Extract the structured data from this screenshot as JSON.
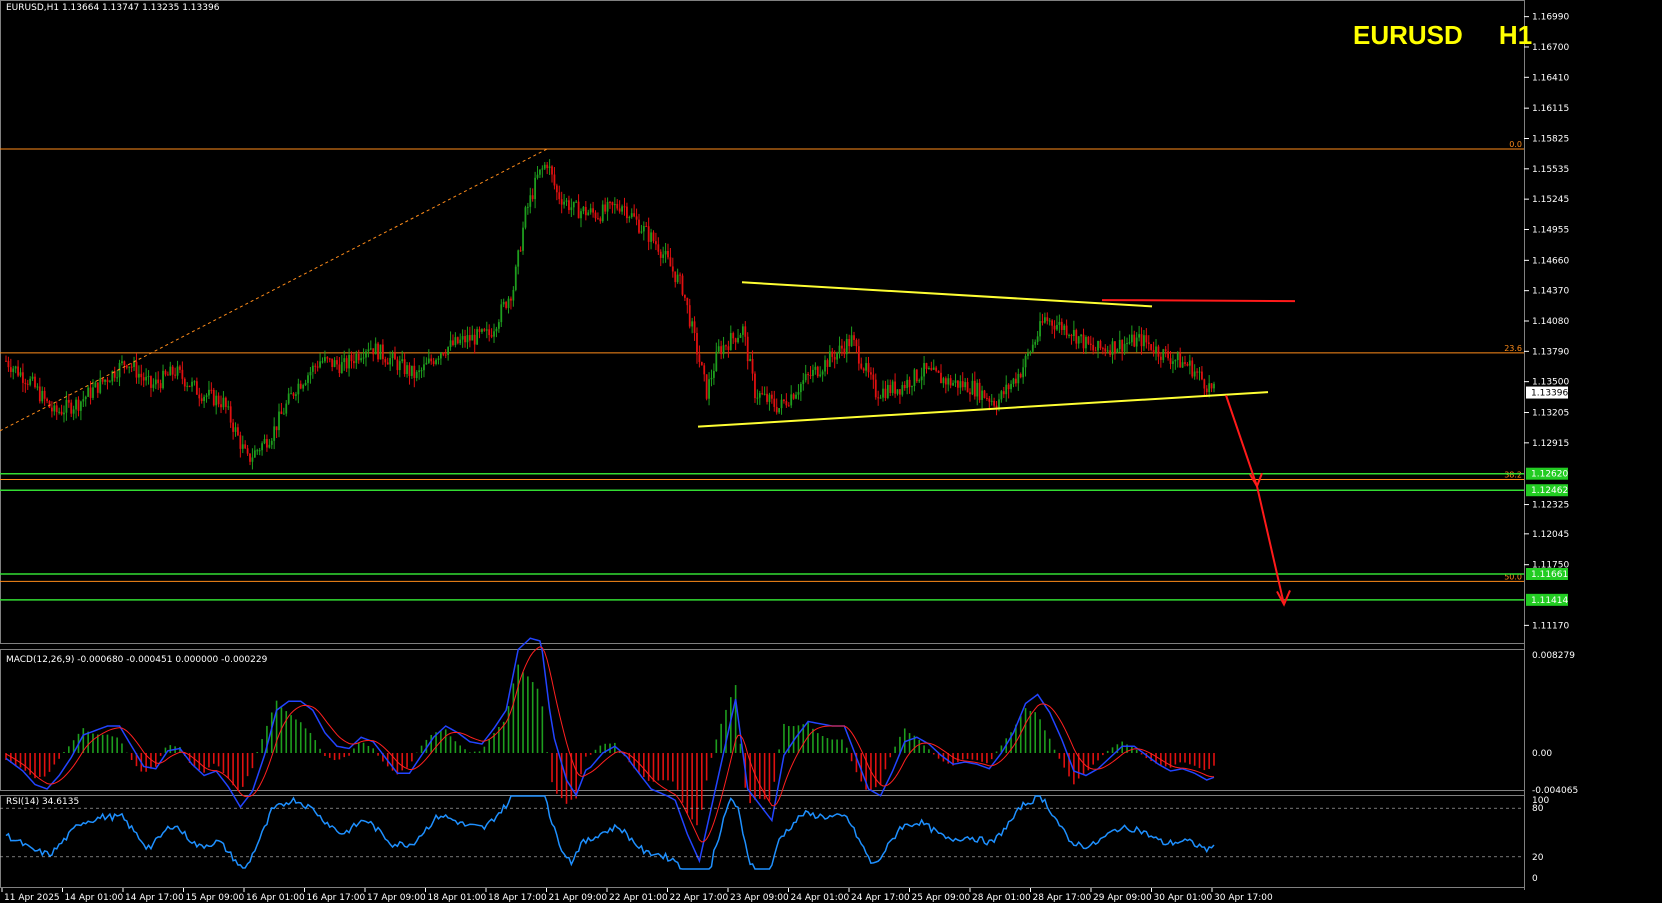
{
  "header": {
    "main_info": "EURUSD,H1  1.13664 1.13747 1.13235 1.13396",
    "title_symbol": "EURUSD",
    "title_timeframe": "H1"
  },
  "price_axis": {
    "labels": [
      "1.16990",
      "1.16700",
      "1.16410",
      "1.16115",
      "1.15825",
      "1.15535",
      "1.15245",
      "1.14955",
      "1.14660",
      "1.14370",
      "1.14080",
      "1.13790",
      "1.13500",
      "1.13205",
      "1.12915",
      "1.12325",
      "1.12045",
      "1.11750",
      "1.11170"
    ],
    "current_price": "1.13396",
    "level_boxes": [
      "1.12620",
      "1.12462",
      "1.11661",
      "1.11414"
    ]
  },
  "fib_labels": [
    "0.0",
    "23.6",
    "38.2",
    "50.0"
  ],
  "time_axis": [
    "11 Apr 2025",
    "14 Apr 01:00",
    "14 Apr 17:00",
    "15 Apr 09:00",
    "16 Apr 01:00",
    "16 Apr 17:00",
    "17 Apr 09:00",
    "18 Apr 01:00",
    "18 Apr 17:00",
    "21 Apr 09:00",
    "22 Apr 01:00",
    "22 Apr 17:00",
    "23 Apr 09:00",
    "24 Apr 01:00",
    "24 Apr 17:00",
    "25 Apr 09:00",
    "28 Apr 01:00",
    "28 Apr 17:00",
    "29 Apr 09:00",
    "30 Apr 01:00",
    "30 Apr 17:00"
  ],
  "macd": {
    "label": "MACD(12,26,9) -0.000680 -0.000451 0.000000 -0.000229",
    "axis": [
      "0.008279",
      "0.00",
      "-0.004065"
    ]
  },
  "rsi": {
    "label": "RSI(14) 34.6135",
    "axis": [
      "100",
      "80",
      "20",
      "0"
    ]
  },
  "colors": {
    "bull": "#1e9e1e",
    "bear": "#e01010",
    "fib": "#ff8c1a",
    "trendline": "#ffff33",
    "support": "#33dd33",
    "arrow": "#ff1a1a",
    "macd_main": "#2244ff",
    "macd_signal": "#ff2020",
    "rsi": "#1e90ff"
  },
  "chart_data": {
    "type": "candlestick",
    "symbol": "EURUSD",
    "timeframe": "H1",
    "ohlc_last": {
      "open": 1.13664,
      "high": 1.13747,
      "low": 1.13235,
      "close": 1.13396
    },
    "path_close": [
      [
        0,
        1.137
      ],
      [
        10,
        1.135
      ],
      [
        20,
        1.132
      ],
      [
        30,
        1.133
      ],
      [
        40,
        1.135
      ],
      [
        50,
        1.137
      ],
      [
        60,
        1.1345
      ],
      [
        70,
        1.136
      ],
      [
        80,
        1.134
      ],
      [
        90,
        1.133
      ],
      [
        100,
        1.1275
      ],
      [
        110,
        1.13
      ],
      [
        120,
        1.1345
      ],
      [
        130,
        1.137
      ],
      [
        140,
        1.1365
      ],
      [
        150,
        1.1385
      ],
      [
        160,
        1.137
      ],
      [
        170,
        1.1355
      ],
      [
        180,
        1.138
      ],
      [
        190,
        1.139
      ],
      [
        200,
        1.1395
      ],
      [
        210,
        1.144
      ],
      [
        215,
        1.151
      ],
      [
        220,
        1.1545
      ],
      [
        224,
        1.156
      ],
      [
        228,
        1.153
      ],
      [
        235,
        1.1515
      ],
      [
        245,
        1.151
      ],
      [
        255,
        1.152
      ],
      [
        262,
        1.15
      ],
      [
        270,
        1.148
      ],
      [
        280,
        1.144
      ],
      [
        285,
        1.139
      ],
      [
        290,
        1.134
      ],
      [
        295,
        1.138
      ],
      [
        305,
        1.14
      ],
      [
        310,
        1.134
      ],
      [
        320,
        1.1325
      ],
      [
        330,
        1.135
      ],
      [
        340,
        1.137
      ],
      [
        350,
        1.139
      ],
      [
        360,
        1.134
      ],
      [
        370,
        1.1345
      ],
      [
        380,
        1.136
      ],
      [
        390,
        1.135
      ],
      [
        400,
        1.1345
      ],
      [
        410,
        1.133
      ],
      [
        420,
        1.136
      ],
      [
        430,
        1.141
      ],
      [
        440,
        1.14
      ],
      [
        450,
        1.138
      ],
      [
        460,
        1.1385
      ],
      [
        470,
        1.139
      ],
      [
        480,
        1.1375
      ],
      [
        490,
        1.1365
      ],
      [
        500,
        1.134
      ]
    ],
    "trendline_upper": {
      "start": 1.1445,
      "end": 1.1422
    },
    "trendline_lower": {
      "start": 1.1307,
      "end": 1.134
    },
    "resistance_line": 1.1428,
    "fib_levels": [
      {
        "label": "0.0",
        "price": 1.15725
      },
      {
        "label": "23.6",
        "price": 1.13775
      },
      {
        "label": "38.2",
        "price": 1.12565
      },
      {
        "label": "50.0",
        "price": 1.1159
      }
    ],
    "support_levels": [
      1.1262,
      1.12462,
      1.11661,
      1.11414
    ],
    "projected_path": [
      1.1337,
      1.125,
      1.1137
    ],
    "rsi_value": 34.6135,
    "rsi_levels": [
      80,
      20
    ],
    "macd_values": {
      "main": -0.00068,
      "signal": -0.000451,
      "hist": -0.000229
    }
  }
}
